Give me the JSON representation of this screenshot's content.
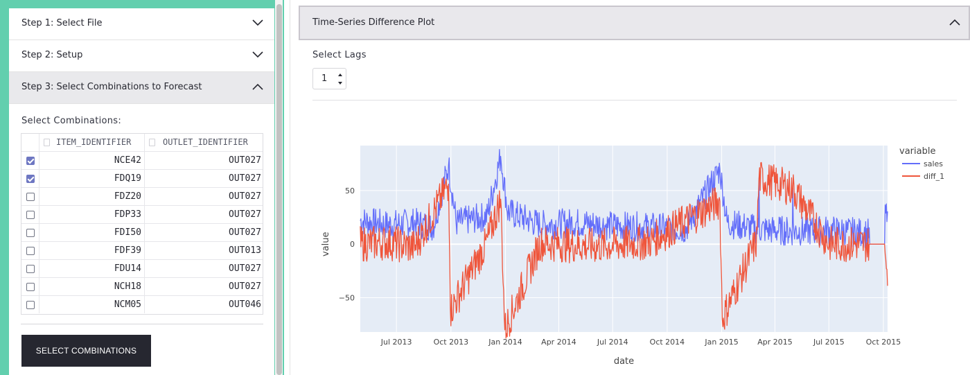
{
  "sidebar": {
    "steps": [
      {
        "label": "Step 1: Select File",
        "expanded": false
      },
      {
        "label": "Step 2: Setup",
        "expanded": false
      },
      {
        "label": "Step 3: Select Combinations to Forecast",
        "expanded": true
      }
    ],
    "select_label": "Select Combinations:",
    "table": {
      "columns": [
        "ITEM_IDENTIFIER",
        "OUTLET_IDENTIFIER"
      ],
      "rows": [
        {
          "checked": true,
          "item": "NCE42",
          "outlet": "OUT027"
        },
        {
          "checked": true,
          "item": "FDQ19",
          "outlet": "OUT027"
        },
        {
          "checked": false,
          "item": "FDZ20",
          "outlet": "OUT027"
        },
        {
          "checked": false,
          "item": "FDP33",
          "outlet": "OUT027"
        },
        {
          "checked": false,
          "item": "FDI50",
          "outlet": "OUT027"
        },
        {
          "checked": false,
          "item": "FDF39",
          "outlet": "OUT013"
        },
        {
          "checked": false,
          "item": "FDU14",
          "outlet": "OUT027"
        },
        {
          "checked": false,
          "item": "NCH18",
          "outlet": "OUT027"
        },
        {
          "checked": false,
          "item": "NCM05",
          "outlet": "OUT046"
        }
      ]
    },
    "select_button": "SELECT COMBINATIONS"
  },
  "main": {
    "expander_title": "Time-Series Difference Plot",
    "lags_label": "Select Lags",
    "lags_value": "1"
  },
  "colors": {
    "accent": "#62cfae",
    "sales": "#636efa",
    "diff_1": "#ef553b",
    "plot_bg": "#e5ecf6",
    "button": "#262730"
  },
  "chart_data": {
    "type": "line",
    "x_label": "date",
    "y_label": "value",
    "legend_title": "variable",
    "legend_position": "top-right",
    "x_range": [
      "2013-05-01",
      "2015-10-08"
    ],
    "y_range": [
      -82,
      92
    ],
    "y_ticks": [
      50,
      0,
      -50
    ],
    "y_tick_labels": [
      "50",
      "0",
      "−50"
    ],
    "x_ticks": [
      "2013-07-01",
      "2013-10-01",
      "2014-01-01",
      "2014-04-01",
      "2014-07-01",
      "2014-10-01",
      "2015-01-01",
      "2015-04-01",
      "2015-07-01",
      "2015-10-01"
    ],
    "x_tick_labels": [
      "Jul 2013",
      "Oct 2013",
      "Jan 2014",
      "Apr 2014",
      "Jul 2014",
      "Oct 2014",
      "Jan 2015",
      "Apr 2015",
      "Jul 2015",
      "Oct 2015"
    ],
    "grid": true,
    "series": [
      {
        "name": "sales",
        "approx_points": [
          [
            "2013-05-01",
            22
          ],
          [
            "2013-06-15",
            18
          ],
          [
            "2013-08-01",
            20
          ],
          [
            "2013-09-01",
            16
          ],
          [
            "2013-09-27",
            74
          ],
          [
            "2013-10-10",
            20
          ],
          [
            "2013-12-01",
            26
          ],
          [
            "2013-12-24",
            82
          ],
          [
            "2014-01-05",
            30
          ],
          [
            "2014-03-01",
            18
          ],
          [
            "2014-05-01",
            20
          ],
          [
            "2014-07-01",
            17
          ],
          [
            "2014-09-01",
            16
          ],
          [
            "2014-11-01",
            14
          ],
          [
            "2014-12-29",
            70
          ],
          [
            "2015-01-10",
            20
          ],
          [
            "2015-03-01",
            14
          ],
          [
            "2015-05-01",
            12
          ],
          [
            "2015-07-01",
            13
          ],
          [
            "2015-09-05",
            10
          ],
          [
            "2015-09-25",
            0
          ],
          [
            "2015-10-05",
            28
          ]
        ]
      },
      {
        "name": "diff_1",
        "approx_points": [
          [
            "2013-05-01",
            0
          ],
          [
            "2013-06-15",
            2
          ],
          [
            "2013-08-01",
            -3
          ],
          [
            "2013-09-27",
            56
          ],
          [
            "2013-10-01",
            -61
          ],
          [
            "2013-12-01",
            2
          ],
          [
            "2013-12-24",
            42
          ],
          [
            "2013-12-31",
            -80
          ],
          [
            "2014-03-01",
            1
          ],
          [
            "2014-06-01",
            -2
          ],
          [
            "2014-09-01",
            2
          ],
          [
            "2014-12-29",
            40
          ],
          [
            "2015-01-02",
            -70
          ],
          [
            "2015-03-01",
            3
          ],
          [
            "2015-03-05",
            62
          ],
          [
            "2015-05-01",
            52
          ],
          [
            "2015-07-01",
            0
          ],
          [
            "2015-09-25",
            0
          ],
          [
            "2015-10-05",
            -22
          ]
        ]
      }
    ]
  }
}
